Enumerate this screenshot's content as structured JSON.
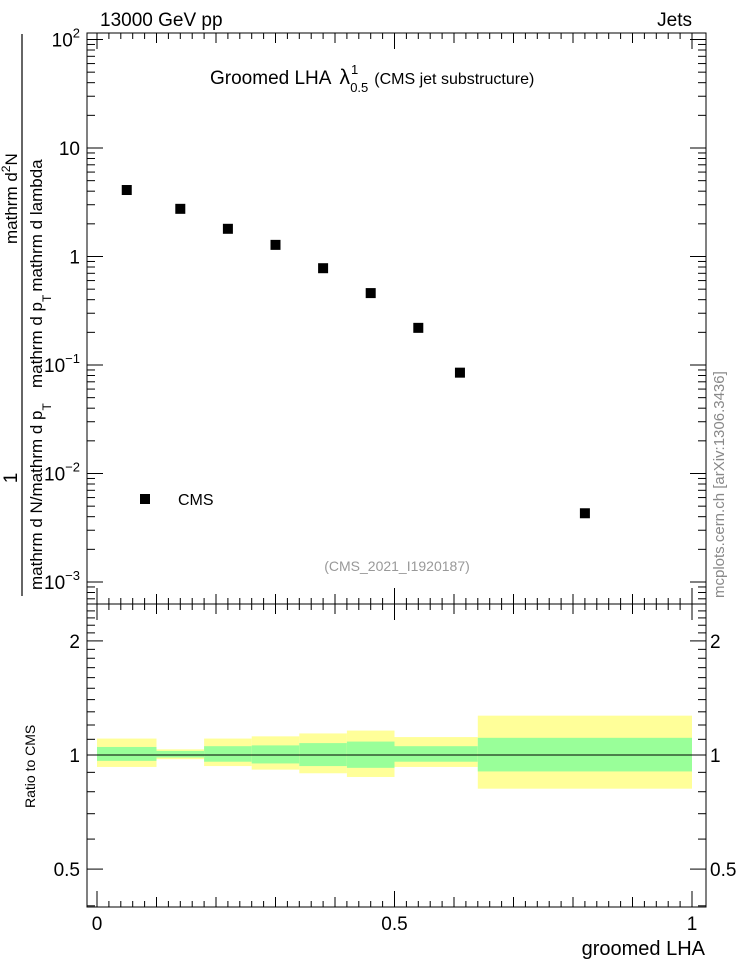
{
  "header": {
    "energy_label": "13000 GeV pp",
    "process_label": "Jets"
  },
  "main": {
    "title_prefix": "Groomed LHA",
    "title_symbol": "λ",
    "title_sup": "1",
    "title_sub": "0.5",
    "title_suffix": "(CMS jet substructure)",
    "ylabel_left_parts": [
      "1",
      "mathrm d N",
      "mathrm d p",
      "T",
      "mathrm d p",
      "T",
      "mathrm d lambda",
      "mathrm d",
      "2",
      "N"
    ],
    "analysis_id": "(CMS_2021_I1920187)",
    "legend_label": "CMS"
  },
  "ratio": {
    "ylabel": "Ratio to CMS",
    "xlabel": "groomed LHA"
  },
  "watermark": "mcplots.cern.ch [arXiv:1306.3436]",
  "colors": {
    "band_outer": "#ffff99",
    "band_inner": "#99ff99",
    "marker": "#000000"
  },
  "chart_data": [
    {
      "type": "scatter",
      "title": "Groomed LHA λ^1_0.5 (CMS jet substructure)",
      "xlabel": "",
      "ylabel": "1/(mathrm d N/mathrm d p_T) mathrm d^2N/(mathrm d p_T mathrm d lambda)",
      "xlim": [
        0,
        1
      ],
      "ylim": [
        0.0005,
        150
      ],
      "yscale": "log",
      "y_ticks": [
        {
          "value": 0.001,
          "base": "10",
          "exp": "−3"
        },
        {
          "value": 0.01,
          "base": "10",
          "exp": "−2"
        },
        {
          "value": 0.1,
          "base": "10",
          "exp": "−1"
        },
        {
          "value": 1,
          "base": "1",
          "exp": ""
        },
        {
          "value": 10,
          "base": "10",
          "exp": ""
        },
        {
          "value": 100,
          "base": "10",
          "exp": "2"
        }
      ],
      "series": [
        {
          "name": "CMS",
          "x": [
            0.05,
            0.14,
            0.22,
            0.3,
            0.38,
            0.46,
            0.54,
            0.61,
            0.82
          ],
          "y": [
            4.1,
            2.75,
            1.8,
            1.28,
            0.78,
            0.46,
            0.22,
            0.085,
            0.0043
          ]
        }
      ]
    },
    {
      "type": "area",
      "title": "",
      "xlabel": "groomed LHA",
      "ylabel": "Ratio to CMS",
      "xlim": [
        0,
        1
      ],
      "ylim": [
        0.32,
        2.4
      ],
      "x_ticks": [
        "0",
        "0.5",
        "1"
      ],
      "y_ticks": [
        "0.5",
        "1",
        "2"
      ],
      "reference_line": 1,
      "bins": [
        {
          "x0": 0.0,
          "x1": 0.1,
          "inner": [
            0.965,
            1.05
          ],
          "outer": [
            0.93,
            1.105
          ]
        },
        {
          "x0": 0.1,
          "x1": 0.18,
          "inner": [
            0.985,
            1.025
          ],
          "outer": [
            0.975,
            1.035
          ]
        },
        {
          "x0": 0.18,
          "x1": 0.26,
          "inner": [
            0.96,
            1.055
          ],
          "outer": [
            0.935,
            1.105
          ]
        },
        {
          "x0": 0.26,
          "x1": 0.34,
          "inner": [
            0.95,
            1.06
          ],
          "outer": [
            0.915,
            1.12
          ]
        },
        {
          "x0": 0.34,
          "x1": 0.42,
          "inner": [
            0.935,
            1.075
          ],
          "outer": [
            0.895,
            1.14
          ]
        },
        {
          "x0": 0.42,
          "x1": 0.5,
          "inner": [
            0.925,
            1.085
          ],
          "outer": [
            0.875,
            1.16
          ]
        },
        {
          "x0": 0.5,
          "x1": 0.64,
          "inner": [
            0.96,
            1.055
          ],
          "outer": [
            0.93,
            1.115
          ]
        },
        {
          "x0": 0.64,
          "x1": 1.0,
          "inner": [
            0.905,
            1.11
          ],
          "outer": [
            0.815,
            1.27
          ]
        }
      ]
    }
  ]
}
